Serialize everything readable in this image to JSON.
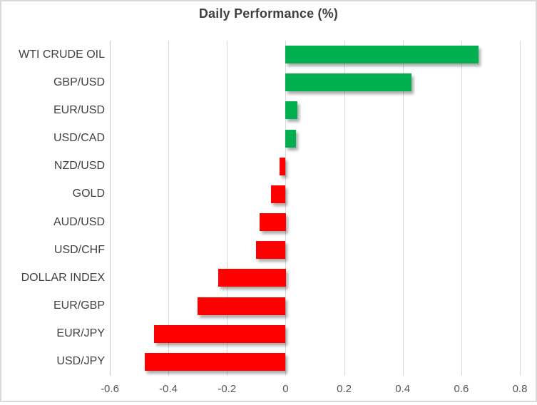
{
  "chart_data": {
    "type": "bar",
    "orientation": "horizontal",
    "title": "Daily Performance (%)",
    "categories": [
      "WTI CRUDE OIL",
      "GBP/USD",
      "EUR/USD",
      "USD/CAD",
      "NZD/USD",
      "GOLD",
      "AUD/USD",
      "USD/CHF",
      "DOLLAR INDEX",
      "EUR/GBP",
      "EUR/JPY",
      "USD/JPY"
    ],
    "values": [
      0.66,
      0.43,
      0.04,
      0.035,
      -0.02,
      -0.05,
      -0.09,
      -0.1,
      -0.23,
      -0.3,
      -0.45,
      -0.48
    ],
    "xlabel": "",
    "ylabel": "",
    "xlim": [
      -0.6,
      0.8
    ],
    "x_tick_values": [
      -0.6,
      -0.4,
      -0.2,
      0,
      0.2,
      0.4,
      0.6,
      0.8
    ],
    "x_tick_labels": [
      "-0.6",
      "-0.4",
      "-0.2",
      "0",
      "0.2",
      "0.4",
      "0.6",
      "0.8"
    ],
    "grid": true,
    "legend": false,
    "colors": {
      "positive": "#00b050",
      "negative": "#ff0000",
      "gridline": "#d9d9d9",
      "axis_line": "#c6c6c6",
      "border": "#d9d9d9",
      "title": "#3f3f3f",
      "category_label": "#3f3f3f",
      "tick_label": "#555555"
    }
  }
}
